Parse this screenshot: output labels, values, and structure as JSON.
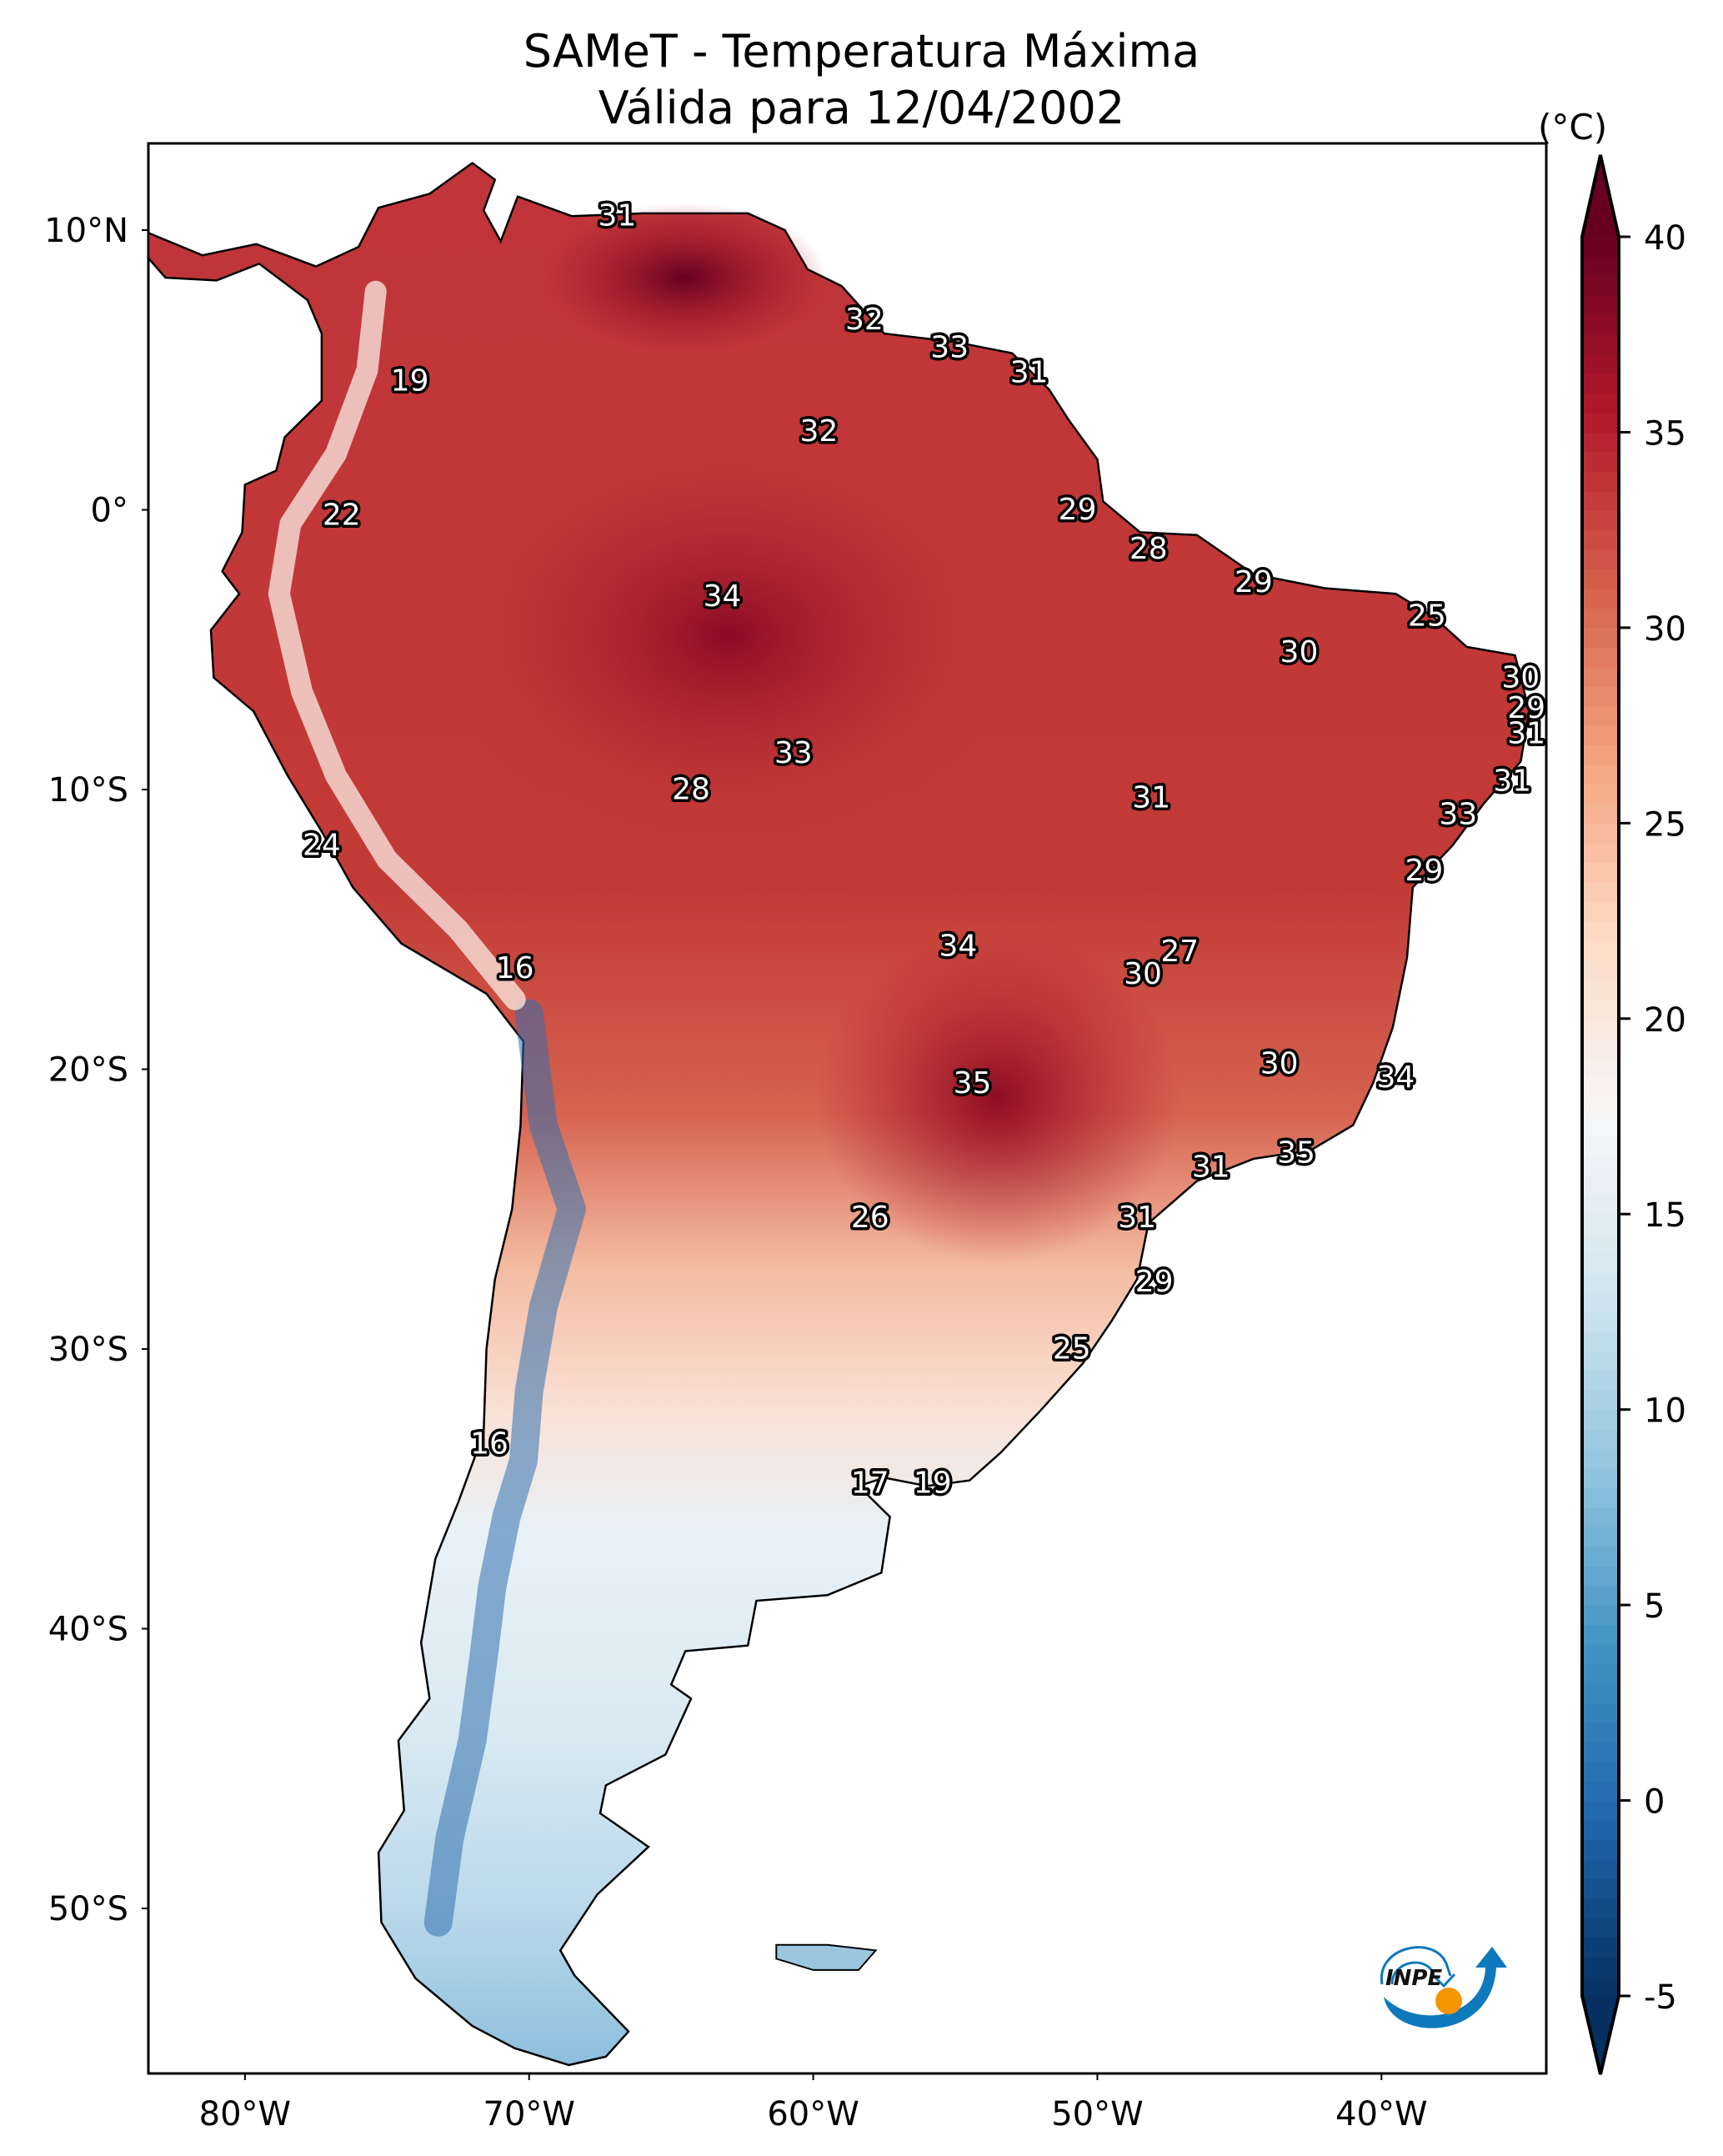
{
  "title": {
    "line1": "SAMeT - Temperatura Máxima",
    "line2": "Válida para 12/04/2002"
  },
  "colorbar": {
    "unit_label": "(°C)",
    "min": -5,
    "max": 40,
    "extend": "both",
    "ticks": [
      "40",
      "35",
      "30",
      "25",
      "20",
      "15",
      "10",
      "5",
      "0",
      "-5"
    ],
    "tick_values": [
      40,
      35,
      30,
      25,
      20,
      15,
      10,
      5,
      0,
      -5
    ],
    "colormap": "RdBu_r",
    "colors": [
      "#053061",
      "#2166ac",
      "#4393c3",
      "#92c5de",
      "#d1e5f0",
      "#f7f7f7",
      "#fddbc7",
      "#f4a582",
      "#d6604d",
      "#b2182b",
      "#67001f"
    ]
  },
  "chart_data": {
    "type": "heatmap",
    "title": "SAMeT - Temperatura Máxima — Válida para 12/04/2002",
    "variable": "Temperatura Máxima",
    "unit": "°C",
    "date": "12/04/2002",
    "region": "South America",
    "xlim": [
      -83.4,
      -34.2
    ],
    "ylim": [
      -55.9,
      13.1
    ],
    "x_ticks": [
      {
        "value": -80,
        "label": "80°W"
      },
      {
        "value": -70,
        "label": "70°W"
      },
      {
        "value": -60,
        "label": "60°W"
      },
      {
        "value": -50,
        "label": "50°W"
      },
      {
        "value": -40,
        "label": "40°W"
      }
    ],
    "y_ticks": [
      {
        "value": 10,
        "label": "10°N"
      },
      {
        "value": 0,
        "label": "0°"
      },
      {
        "value": -10,
        "label": "10°S"
      },
      {
        "value": -20,
        "label": "20°S"
      },
      {
        "value": -30,
        "label": "30°S"
      },
      {
        "value": -40,
        "label": "40°S"
      },
      {
        "value": -50,
        "label": "50°S"
      }
    ],
    "grid": false,
    "legend": "colorbar-right",
    "annotations": [
      {
        "lon": -66.9,
        "lat": 10.5,
        "value": 31
      },
      {
        "lon": -58.2,
        "lat": 6.8,
        "value": 32
      },
      {
        "lon": -55.2,
        "lat": 5.8,
        "value": 33
      },
      {
        "lon": -52.4,
        "lat": 4.9,
        "value": 31
      },
      {
        "lon": -74.2,
        "lat": 4.6,
        "value": 19
      },
      {
        "lon": -59.8,
        "lat": 2.8,
        "value": 32
      },
      {
        "lon": -76.6,
        "lat": -0.2,
        "value": 22
      },
      {
        "lon": -50.7,
        "lat": 0.0,
        "value": 29
      },
      {
        "lon": -48.2,
        "lat": -1.4,
        "value": 28
      },
      {
        "lon": -63.2,
        "lat": -3.1,
        "value": 34
      },
      {
        "lon": -44.5,
        "lat": -2.6,
        "value": 29
      },
      {
        "lon": -38.4,
        "lat": -3.8,
        "value": 25
      },
      {
        "lon": -42.9,
        "lat": -5.1,
        "value": 30
      },
      {
        "lon": -35.1,
        "lat": -6.0,
        "value": 30
      },
      {
        "lon": -34.9,
        "lat": -7.1,
        "value": 29
      },
      {
        "lon": -34.9,
        "lat": -8.0,
        "value": 31
      },
      {
        "lon": -35.4,
        "lat": -9.7,
        "value": 31
      },
      {
        "lon": -60.7,
        "lat": -8.7,
        "value": 33
      },
      {
        "lon": -64.3,
        "lat": -10.0,
        "value": 28
      },
      {
        "lon": -48.1,
        "lat": -10.3,
        "value": 31
      },
      {
        "lon": -37.3,
        "lat": -10.9,
        "value": 33
      },
      {
        "lon": -77.3,
        "lat": -12.0,
        "value": 24
      },
      {
        "lon": -38.5,
        "lat": -12.9,
        "value": 29
      },
      {
        "lon": -54.9,
        "lat": -15.6,
        "value": 34
      },
      {
        "lon": -47.1,
        "lat": -15.8,
        "value": 27
      },
      {
        "lon": -48.4,
        "lat": -16.6,
        "value": 30
      },
      {
        "lon": -70.5,
        "lat": -16.4,
        "value": 16
      },
      {
        "lon": -43.6,
        "lat": -19.8,
        "value": 30
      },
      {
        "lon": -39.5,
        "lat": -20.3,
        "value": 34
      },
      {
        "lon": -54.4,
        "lat": -20.5,
        "value": 35
      },
      {
        "lon": -43.0,
        "lat": -23.0,
        "value": 35
      },
      {
        "lon": -46.0,
        "lat": -23.5,
        "value": 31
      },
      {
        "lon": -58.0,
        "lat": -25.3,
        "value": 26
      },
      {
        "lon": -48.6,
        "lat": -25.3,
        "value": 31
      },
      {
        "lon": -48.0,
        "lat": -27.6,
        "value": 29
      },
      {
        "lon": -50.9,
        "lat": -30.0,
        "value": 25
      },
      {
        "lon": -71.4,
        "lat": -33.4,
        "value": 16
      },
      {
        "lon": -58.0,
        "lat": -34.8,
        "value": 17
      },
      {
        "lon": -55.8,
        "lat": -34.8,
        "value": 19
      }
    ]
  },
  "logo": {
    "text": "INPE",
    "colors": {
      "swirl": "#0e79bd",
      "sun": "#f39400"
    }
  }
}
